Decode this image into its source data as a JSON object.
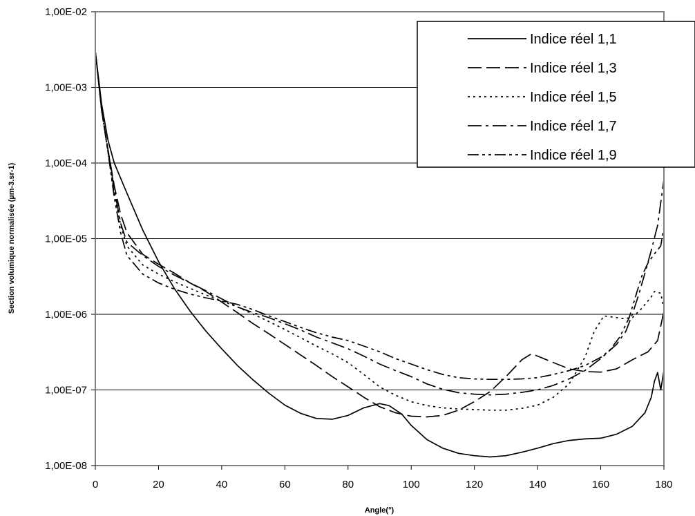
{
  "chart_data": {
    "type": "line",
    "title": "",
    "xlabel": "Angle(°)",
    "ylabel": "Section volumique normalisée (µm-3.sr-1)",
    "xlim": [
      0,
      180
    ],
    "ylim": [
      1e-08,
      0.01
    ],
    "yscale": "log",
    "grid": "horizontal",
    "legend_position": "top-right",
    "x_ticks": [
      "0",
      "20",
      "40",
      "60",
      "80",
      "100",
      "120",
      "140",
      "160",
      "180"
    ],
    "y_ticks": [
      "1,00E-08",
      "1,00E-07",
      "1,00E-06",
      "1,00E-05",
      "1,00E-04",
      "1,00E-03",
      "1,00E-02"
    ],
    "series": [
      {
        "name": "Indice réel 1,1",
        "style": "solid",
        "points": [
          [
            0,
            0.003
          ],
          [
            2,
            0.0006
          ],
          [
            4,
            0.0002
          ],
          [
            6,
            0.0001
          ],
          [
            10,
            4e-05
          ],
          [
            15,
            1.3e-05
          ],
          [
            20,
            5e-06
          ],
          [
            25,
            2.2e-06
          ],
          [
            30,
            1.1e-06
          ],
          [
            35,
            6e-07
          ],
          [
            40,
            3.5e-07
          ],
          [
            45,
            2.1e-07
          ],
          [
            50,
            1.35e-07
          ],
          [
            55,
            9e-08
          ],
          [
            60,
            6.3e-08
          ],
          [
            65,
            4.9e-08
          ],
          [
            70,
            4.2e-08
          ],
          [
            75,
            4.1e-08
          ],
          [
            80,
            4.6e-08
          ],
          [
            85,
            5.8e-08
          ],
          [
            90,
            6.6e-08
          ],
          [
            93,
            6.2e-08
          ],
          [
            97,
            4.8e-08
          ],
          [
            100,
            3.4e-08
          ],
          [
            105,
            2.2e-08
          ],
          [
            110,
            1.7e-08
          ],
          [
            115,
            1.45e-08
          ],
          [
            120,
            1.35e-08
          ],
          [
            125,
            1.3e-08
          ],
          [
            130,
            1.35e-08
          ],
          [
            135,
            1.5e-08
          ],
          [
            140,
            1.7e-08
          ],
          [
            145,
            1.95e-08
          ],
          [
            150,
            2.15e-08
          ],
          [
            155,
            2.25e-08
          ],
          [
            160,
            2.3e-08
          ],
          [
            165,
            2.6e-08
          ],
          [
            170,
            3.3e-08
          ],
          [
            174,
            5e-08
          ],
          [
            176,
            8e-08
          ],
          [
            177,
            1.3e-07
          ],
          [
            178,
            1.7e-07
          ],
          [
            179,
            1e-07
          ],
          [
            180,
            1.8e-07
          ]
        ]
      },
      {
        "name": "Indice réel 1,3",
        "style": "dash",
        "points": [
          [
            0,
            0.003
          ],
          [
            2,
            0.0005
          ],
          [
            4,
            0.00015
          ],
          [
            6,
            5e-05
          ],
          [
            8,
            2.1e-05
          ],
          [
            10,
            1.2e-05
          ],
          [
            15,
            6.2e-06
          ],
          [
            20,
            4.6e-06
          ],
          [
            25,
            3.5e-06
          ],
          [
            30,
            2.6e-06
          ],
          [
            35,
            2e-06
          ],
          [
            40,
            1.45e-06
          ],
          [
            45,
            1.05e-06
          ],
          [
            50,
            7.5e-07
          ],
          [
            55,
            5.5e-07
          ],
          [
            60,
            4e-07
          ],
          [
            65,
            2.9e-07
          ],
          [
            70,
            2.1e-07
          ],
          [
            75,
            1.5e-07
          ],
          [
            80,
            1.1e-07
          ],
          [
            85,
            8e-08
          ],
          [
            90,
            6e-08
          ],
          [
            95,
            5e-08
          ],
          [
            100,
            4.5e-08
          ],
          [
            105,
            4.4e-08
          ],
          [
            110,
            4.6e-08
          ],
          [
            115,
            5.4e-08
          ],
          [
            120,
            7e-08
          ],
          [
            125,
            9.5e-08
          ],
          [
            130,
            1.5e-07
          ],
          [
            135,
            2.5e-07
          ],
          [
            138,
            3e-07
          ],
          [
            140,
            2.8e-07
          ],
          [
            145,
            2.3e-07
          ],
          [
            150,
            1.9e-07
          ],
          [
            155,
            1.75e-07
          ],
          [
            160,
            1.72e-07
          ],
          [
            165,
            1.9e-07
          ],
          [
            170,
            2.5e-07
          ],
          [
            175,
            3.2e-07
          ],
          [
            178,
            4.5e-07
          ],
          [
            180,
            1.1e-06
          ]
        ]
      },
      {
        "name": "Indice réel 1,5",
        "style": "dot",
        "points": [
          [
            0,
            0.003
          ],
          [
            2,
            0.0005
          ],
          [
            4,
            0.00014
          ],
          [
            6,
            4e-05
          ],
          [
            8,
            1.5e-05
          ],
          [
            10,
            8e-06
          ],
          [
            15,
            4.5e-06
          ],
          [
            20,
            3.4e-06
          ],
          [
            25,
            2.7e-06
          ],
          [
            30,
            2.2e-06
          ],
          [
            35,
            1.8e-06
          ],
          [
            40,
            1.5e-06
          ],
          [
            45,
            1.25e-06
          ],
          [
            50,
            1e-06
          ],
          [
            55,
            8e-07
          ],
          [
            60,
            6.3e-07
          ],
          [
            65,
            4.9e-07
          ],
          [
            70,
            3.8e-07
          ],
          [
            75,
            3e-07
          ],
          [
            80,
            2.3e-07
          ],
          [
            85,
            1.6e-07
          ],
          [
            90,
            1.1e-07
          ],
          [
            95,
            8.5e-08
          ],
          [
            100,
            7e-08
          ],
          [
            105,
            6.2e-08
          ],
          [
            110,
            5.8e-08
          ],
          [
            115,
            5.6e-08
          ],
          [
            120,
            5.5e-08
          ],
          [
            125,
            5.4e-08
          ],
          [
            130,
            5.4e-08
          ],
          [
            135,
            5.7e-08
          ],
          [
            140,
            6.3e-08
          ],
          [
            145,
            8e-08
          ],
          [
            150,
            1.2e-07
          ],
          [
            155,
            2.7e-07
          ],
          [
            158,
            6e-07
          ],
          [
            161,
            9.5e-07
          ],
          [
            164,
            9.2e-07
          ],
          [
            167,
            8.8e-07
          ],
          [
            170,
            9e-07
          ],
          [
            173,
            1.2e-06
          ],
          [
            176,
            1.7e-06
          ],
          [
            177,
            2e-06
          ],
          [
            179,
            1.9e-06
          ],
          [
            180,
            1.2e-06
          ]
        ]
      },
      {
        "name": "Indice réel 1,7",
        "style": "dashdot",
        "points": [
          [
            0,
            0.003
          ],
          [
            2,
            0.0005
          ],
          [
            4,
            0.00015
          ],
          [
            6,
            4.5e-05
          ],
          [
            8,
            1.6e-05
          ],
          [
            10,
            9e-06
          ],
          [
            15,
            6e-06
          ],
          [
            20,
            4.3e-06
          ],
          [
            25,
            3.3e-06
          ],
          [
            30,
            2.6e-06
          ],
          [
            35,
            2.05e-06
          ],
          [
            40,
            1.6e-06
          ],
          [
            45,
            1.25e-06
          ],
          [
            50,
            1.05e-06
          ],
          [
            55,
            9e-07
          ],
          [
            60,
            7.5e-07
          ],
          [
            65,
            6.2e-07
          ],
          [
            70,
            5e-07
          ],
          [
            75,
            4.2e-07
          ],
          [
            80,
            3.5e-07
          ],
          [
            85,
            2.8e-07
          ],
          [
            90,
            2.2e-07
          ],
          [
            95,
            1.8e-07
          ],
          [
            100,
            1.5e-07
          ],
          [
            105,
            1.2e-07
          ],
          [
            110,
            1.02e-07
          ],
          [
            115,
            9.2e-08
          ],
          [
            120,
            8.8e-08
          ],
          [
            125,
            8.6e-08
          ],
          [
            130,
            8.8e-08
          ],
          [
            135,
            9.3e-08
          ],
          [
            140,
            1e-07
          ],
          [
            145,
            1.15e-07
          ],
          [
            150,
            1.4e-07
          ],
          [
            155,
            1.8e-07
          ],
          [
            160,
            2.6e-07
          ],
          [
            165,
            4e-07
          ],
          [
            168,
            6e-07
          ],
          [
            170,
            1e-06
          ],
          [
            172,
            1.8e-06
          ],
          [
            174,
            3.5e-06
          ],
          [
            176,
            7e-06
          ],
          [
            178,
            1.5e-05
          ],
          [
            180,
            6e-05
          ]
        ]
      },
      {
        "name": "Indice réel 1,9",
        "style": "dashdotdot",
        "points": [
          [
            0,
            0.003
          ],
          [
            2,
            0.0005
          ],
          [
            4,
            0.00014
          ],
          [
            6,
            3.5e-05
          ],
          [
            8,
            1.2e-05
          ],
          [
            10,
            6e-06
          ],
          [
            15,
            3.4e-06
          ],
          [
            20,
            2.6e-06
          ],
          [
            25,
            2.15e-06
          ],
          [
            30,
            1.85e-06
          ],
          [
            35,
            1.65e-06
          ],
          [
            40,
            1.5e-06
          ],
          [
            45,
            1.35e-06
          ],
          [
            50,
            1.15e-06
          ],
          [
            55,
            9.5e-07
          ],
          [
            60,
            8e-07
          ],
          [
            65,
            6.7e-07
          ],
          [
            70,
            5.7e-07
          ],
          [
            75,
            5e-07
          ],
          [
            80,
            4.5e-07
          ],
          [
            85,
            3.8e-07
          ],
          [
            90,
            3.2e-07
          ],
          [
            95,
            2.6e-07
          ],
          [
            100,
            2.2e-07
          ],
          [
            105,
            1.85e-07
          ],
          [
            110,
            1.6e-07
          ],
          [
            115,
            1.45e-07
          ],
          [
            120,
            1.4e-07
          ],
          [
            125,
            1.38e-07
          ],
          [
            130,
            1.38e-07
          ],
          [
            135,
            1.4e-07
          ],
          [
            140,
            1.45e-07
          ],
          [
            145,
            1.6e-07
          ],
          [
            150,
            1.8e-07
          ],
          [
            155,
            2.1e-07
          ],
          [
            160,
            2.7e-07
          ],
          [
            163,
            3.4e-07
          ],
          [
            166,
            5e-07
          ],
          [
            169,
            9e-07
          ],
          [
            171,
            1.7e-06
          ],
          [
            173,
            3.2e-06
          ],
          [
            175,
            4.8e-06
          ],
          [
            177,
            6.3e-06
          ],
          [
            179,
            8e-06
          ],
          [
            180,
            1.4e-05
          ]
        ]
      }
    ]
  }
}
